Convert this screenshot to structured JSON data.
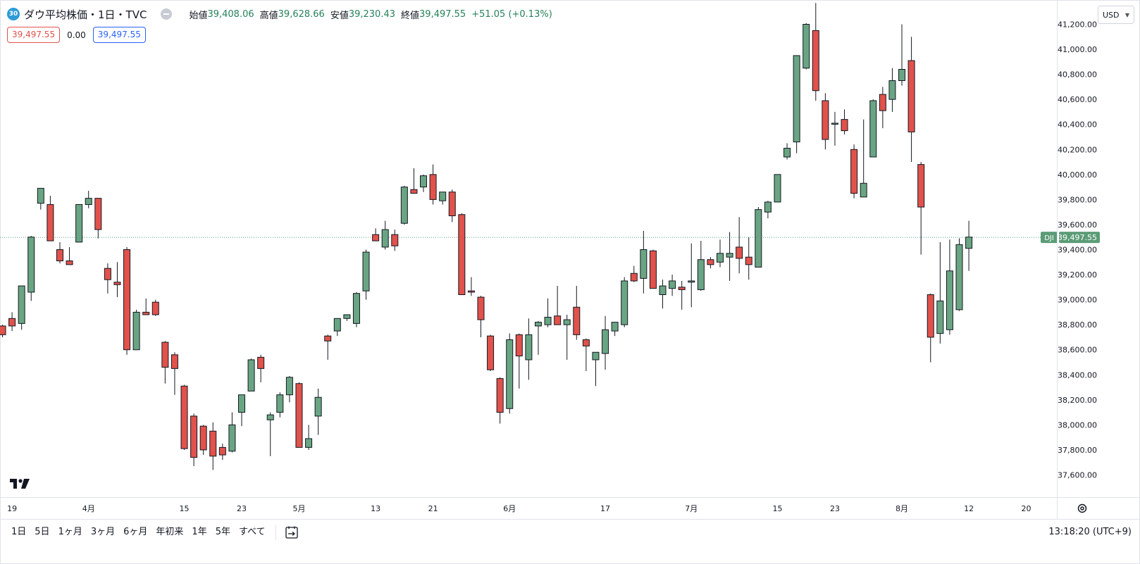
{
  "header": {
    "symbol_badge": "30",
    "title": "ダウ平均株価・1日・TVC",
    "open_label": "始値",
    "open_value": "39,408.06",
    "high_label": "高値",
    "high_value": "39,628.66",
    "low_label": "安値",
    "low_value": "39,230.43",
    "close_label": "終値",
    "close_value": "39,497.55",
    "change": "+51.05 (+0.13%)",
    "sell_price": "39,497.55",
    "spread": "0.00",
    "buy_price": "39,497.55",
    "currency": "USD"
  },
  "colors": {
    "up": "#6aa583",
    "down": "#e0524b",
    "price_tag": "#5b9c77",
    "up_text": "#26805a"
  },
  "chart_data": {
    "type": "candlestick",
    "ylim": [
      37450,
      41350
    ],
    "y_ticks": [
      37600,
      37800,
      38000,
      38200,
      38400,
      38600,
      38800,
      39000,
      39200,
      39400,
      39600,
      39800,
      40000,
      40200,
      40400,
      40600,
      40800,
      41000,
      41200
    ],
    "y_tick_labels": [
      "37,600.00",
      "37,800.00",
      "38,000.00",
      "38,200.00",
      "38,400.00",
      "38,600.00",
      "38,800.00",
      "39,000.00",
      "39,200.00",
      "39,400.00",
      "39,600.00",
      "39,800.00",
      "40,000.00",
      "40,200.00",
      "40,400.00",
      "40,600.00",
      "40,800.00",
      "41,000.00",
      "41,200.00"
    ],
    "x_ticks": [
      {
        "i": 1,
        "label": "19"
      },
      {
        "i": 9,
        "label": "4月"
      },
      {
        "i": 19,
        "label": "15"
      },
      {
        "i": 25,
        "label": "23"
      },
      {
        "i": 31,
        "label": "5月"
      },
      {
        "i": 39,
        "label": "13"
      },
      {
        "i": 45,
        "label": "21"
      },
      {
        "i": 53,
        "label": "6月"
      },
      {
        "i": 63,
        "label": "17"
      },
      {
        "i": 72,
        "label": "7月"
      },
      {
        "i": 81,
        "label": "15"
      },
      {
        "i": 87,
        "label": "23"
      },
      {
        "i": 94,
        "label": "8月"
      },
      {
        "i": 101,
        "label": "12"
      },
      {
        "i": 107,
        "label": "20"
      }
    ],
    "last_price": 39497.55,
    "last_price_label": "39,497.55",
    "symbol": "DJI",
    "candles": [
      {
        "o": 38790,
        "h": 38800,
        "l": 38700,
        "c": 38720
      },
      {
        "o": 38850,
        "h": 38900,
        "l": 38750,
        "c": 38790
      },
      {
        "o": 38810,
        "h": 39110,
        "l": 38760,
        "c": 39110
      },
      {
        "o": 39060,
        "h": 39510,
        "l": 38990,
        "c": 39500
      },
      {
        "o": 39770,
        "h": 39890,
        "l": 39720,
        "c": 39890
      },
      {
        "o": 39760,
        "h": 39830,
        "l": 39470,
        "c": 39470
      },
      {
        "o": 39400,
        "h": 39460,
        "l": 39290,
        "c": 39310
      },
      {
        "o": 39310,
        "h": 39420,
        "l": 39290,
        "c": 39280
      },
      {
        "o": 39460,
        "h": 39760,
        "l": 39460,
        "c": 39760
      },
      {
        "o": 39760,
        "h": 39870,
        "l": 39730,
        "c": 39810
      },
      {
        "o": 39810,
        "h": 39810,
        "l": 39490,
        "c": 39560
      },
      {
        "o": 39250,
        "h": 39290,
        "l": 39050,
        "c": 39160
      },
      {
        "o": 39140,
        "h": 39300,
        "l": 39020,
        "c": 39120
      },
      {
        "o": 39400,
        "h": 39420,
        "l": 38560,
        "c": 38600
      },
      {
        "o": 38600,
        "h": 38920,
        "l": 38600,
        "c": 38900
      },
      {
        "o": 38900,
        "h": 39010,
        "l": 38880,
        "c": 38880
      },
      {
        "o": 38980,
        "h": 39000,
        "l": 38870,
        "c": 38880
      },
      {
        "o": 38660,
        "h": 38670,
        "l": 38330,
        "c": 38460
      },
      {
        "o": 38560,
        "h": 38580,
        "l": 38240,
        "c": 38450
      },
      {
        "o": 38310,
        "h": 38320,
        "l": 37800,
        "c": 37810
      },
      {
        "o": 38070,
        "h": 38090,
        "l": 37670,
        "c": 37740
      },
      {
        "o": 37990,
        "h": 38000,
        "l": 37760,
        "c": 37800
      },
      {
        "o": 37950,
        "h": 38020,
        "l": 37640,
        "c": 37750
      },
      {
        "o": 37820,
        "h": 37850,
        "l": 37720,
        "c": 37760
      },
      {
        "o": 37790,
        "h": 38100,
        "l": 37780,
        "c": 38000
      },
      {
        "o": 38100,
        "h": 38220,
        "l": 37990,
        "c": 38240
      },
      {
        "o": 38270,
        "h": 38530,
        "l": 38290,
        "c": 38520
      },
      {
        "o": 38540,
        "h": 38560,
        "l": 38340,
        "c": 38450
      },
      {
        "o": 38040,
        "h": 38100,
        "l": 37750,
        "c": 38080
      },
      {
        "o": 38100,
        "h": 38260,
        "l": 38060,
        "c": 38240
      },
      {
        "o": 38240,
        "h": 38390,
        "l": 38180,
        "c": 38380
      },
      {
        "o": 38330,
        "h": 38340,
        "l": 37820,
        "c": 37820
      },
      {
        "o": 37820,
        "h": 38000,
        "l": 37800,
        "c": 37890
      },
      {
        "o": 38070,
        "h": 38290,
        "l": 37920,
        "c": 38220
      },
      {
        "o": 38710,
        "h": 38720,
        "l": 38520,
        "c": 38670
      },
      {
        "o": 38750,
        "h": 38850,
        "l": 38710,
        "c": 38850
      },
      {
        "o": 38850,
        "h": 38880,
        "l": 38830,
        "c": 38880
      },
      {
        "o": 38810,
        "h": 39060,
        "l": 38780,
        "c": 39050
      },
      {
        "o": 39070,
        "h": 39400,
        "l": 39000,
        "c": 39380
      },
      {
        "o": 39520,
        "h": 39570,
        "l": 39470,
        "c": 39470
      },
      {
        "o": 39420,
        "h": 39630,
        "l": 39400,
        "c": 39560
      },
      {
        "o": 39520,
        "h": 39560,
        "l": 39390,
        "c": 39430
      },
      {
        "o": 39610,
        "h": 39910,
        "l": 39600,
        "c": 39900
      },
      {
        "o": 39880,
        "h": 40050,
        "l": 39850,
        "c": 39850
      },
      {
        "o": 39900,
        "h": 40000,
        "l": 39860,
        "c": 39990
      },
      {
        "o": 40000,
        "h": 40080,
        "l": 39760,
        "c": 39800
      },
      {
        "o": 39790,
        "h": 39860,
        "l": 39760,
        "c": 39860
      },
      {
        "o": 39860,
        "h": 39880,
        "l": 39620,
        "c": 39670
      },
      {
        "o": 39680,
        "h": 39690,
        "l": 39040,
        "c": 39040
      },
      {
        "o": 39070,
        "h": 39180,
        "l": 39030,
        "c": 39060
      },
      {
        "o": 39020,
        "h": 39030,
        "l": 38700,
        "c": 38840
      },
      {
        "o": 38710,
        "h": 38720,
        "l": 38430,
        "c": 38440
      },
      {
        "o": 38370,
        "h": 38380,
        "l": 38010,
        "c": 38100
      },
      {
        "o": 38130,
        "h": 38730,
        "l": 38090,
        "c": 38680
      },
      {
        "o": 38720,
        "h": 38730,
        "l": 38290,
        "c": 38550
      },
      {
        "o": 38520,
        "h": 38850,
        "l": 38360,
        "c": 38720
      },
      {
        "o": 38790,
        "h": 38830,
        "l": 38560,
        "c": 38820
      },
      {
        "o": 38800,
        "h": 39010,
        "l": 38780,
        "c": 38860
      },
      {
        "o": 38870,
        "h": 39110,
        "l": 38820,
        "c": 38800
      },
      {
        "o": 38800,
        "h": 38880,
        "l": 38520,
        "c": 38840
      },
      {
        "o": 38940,
        "h": 39110,
        "l": 38680,
        "c": 38720
      },
      {
        "o": 38680,
        "h": 38690,
        "l": 38430,
        "c": 38630
      },
      {
        "o": 38520,
        "h": 38560,
        "l": 38310,
        "c": 38580
      },
      {
        "o": 38570,
        "h": 38870,
        "l": 38440,
        "c": 38760
      },
      {
        "o": 38750,
        "h": 38800,
        "l": 38710,
        "c": 38820
      },
      {
        "o": 38800,
        "h": 39180,
        "l": 38780,
        "c": 39150
      },
      {
        "o": 39210,
        "h": 39270,
        "l": 39140,
        "c": 39150
      },
      {
        "o": 39170,
        "h": 39550,
        "l": 39050,
        "c": 39400
      },
      {
        "o": 39390,
        "h": 39400,
        "l": 39090,
        "c": 39090
      },
      {
        "o": 39040,
        "h": 39160,
        "l": 38930,
        "c": 39110
      },
      {
        "o": 39090,
        "h": 39200,
        "l": 39030,
        "c": 39150
      },
      {
        "o": 39100,
        "h": 39150,
        "l": 38920,
        "c": 39080
      },
      {
        "o": 39140,
        "h": 39450,
        "l": 38940,
        "c": 39150
      },
      {
        "o": 39080,
        "h": 39470,
        "l": 39070,
        "c": 39320
      },
      {
        "o": 39320,
        "h": 39340,
        "l": 39250,
        "c": 39280
      },
      {
        "o": 39300,
        "h": 39480,
        "l": 39260,
        "c": 39370
      },
      {
        "o": 39340,
        "h": 39540,
        "l": 39150,
        "c": 39370
      },
      {
        "o": 39420,
        "h": 39660,
        "l": 39210,
        "c": 39330
      },
      {
        "o": 39340,
        "h": 39500,
        "l": 39160,
        "c": 39280
      },
      {
        "o": 39260,
        "h": 39740,
        "l": 39260,
        "c": 39720
      },
      {
        "o": 39700,
        "h": 39790,
        "l": 39650,
        "c": 39780
      },
      {
        "o": 39780,
        "h": 40000,
        "l": 39780,
        "c": 40000
      },
      {
        "o": 40140,
        "h": 40250,
        "l": 40120,
        "c": 40210
      },
      {
        "o": 40260,
        "h": 40950,
        "l": 40170,
        "c": 40950
      },
      {
        "o": 40850,
        "h": 41210,
        "l": 40840,
        "c": 41200
      },
      {
        "o": 41150,
        "h": 41370,
        "l": 40590,
        "c": 40670
      },
      {
        "o": 40590,
        "h": 40650,
        "l": 40200,
        "c": 40280
      },
      {
        "o": 40410,
        "h": 40500,
        "l": 40230,
        "c": 40410
      },
      {
        "o": 40440,
        "h": 40520,
        "l": 40320,
        "c": 40350
      },
      {
        "o": 40200,
        "h": 40240,
        "l": 39810,
        "c": 39850
      },
      {
        "o": 39820,
        "h": 40440,
        "l": 39820,
        "c": 39930
      },
      {
        "o": 40140,
        "h": 40600,
        "l": 40140,
        "c": 40590
      },
      {
        "o": 40640,
        "h": 40700,
        "l": 40370,
        "c": 40510
      },
      {
        "o": 40600,
        "h": 40850,
        "l": 40500,
        "c": 40750
      },
      {
        "o": 40750,
        "h": 41200,
        "l": 40710,
        "c": 40840
      },
      {
        "o": 40910,
        "h": 41100,
        "l": 40100,
        "c": 40340
      },
      {
        "o": 40080,
        "h": 40100,
        "l": 39360,
        "c": 39740
      },
      {
        "o": 39040,
        "h": 39050,
        "l": 38500,
        "c": 38700
      },
      {
        "o": 38730,
        "h": 39460,
        "l": 38650,
        "c": 38990
      },
      {
        "o": 38760,
        "h": 39480,
        "l": 38720,
        "c": 39230
      },
      {
        "o": 38920,
        "h": 39490,
        "l": 38910,
        "c": 39440
      },
      {
        "o": 39410,
        "h": 39630,
        "l": 39230,
        "c": 39500
      }
    ]
  },
  "tv_logo": "tradingview-logo",
  "bottom_bar": {
    "ranges": [
      "1日",
      "5日",
      "1ヶ月",
      "3ヶ月",
      "6ヶ月",
      "年初来",
      "1年",
      "5年",
      "すべて"
    ],
    "clock": "13:18:20 (UTC+9)"
  }
}
